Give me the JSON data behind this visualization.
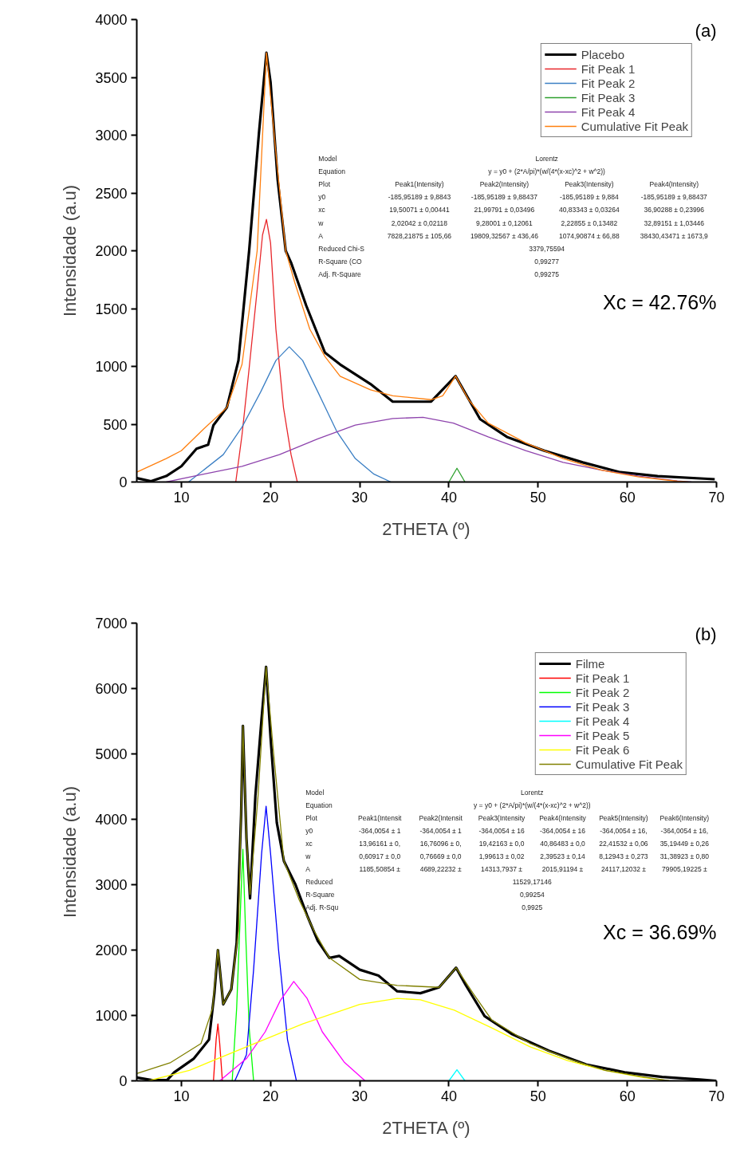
{
  "chart_data": [
    {
      "type": "line",
      "xlabel": "2THETA (º)",
      "ylabel": "Intensidade (a.u)",
      "xlim": [
        5,
        70
      ],
      "ylim": [
        0,
        4000
      ],
      "xticks": [
        10,
        20,
        30,
        40,
        50,
        60,
        70
      ],
      "yticks": [
        0,
        500,
        1000,
        1500,
        2000,
        2500,
        3000,
        3500,
        4000
      ],
      "grid": false,
      "legend": "top right",
      "annotations": [
        "(a)",
        "Xc = 42.76%",
        "Model",
        "Lorentz",
        "Equation",
        "y = y0 + (2*A/pi)*(w/(4*(x-xc)^2 + w^2))",
        "Plot",
        "Peak1(Intensity)",
        "Peak2(Intensity)",
        "Peak3(Intensity)",
        "Peak4(Intensity)",
        "y0",
        "-185,95189 ± 9,8843",
        "-185,95189 ± 9,88437",
        "-185,95189 ± 9,884",
        "-185,95189 ± 9,88437",
        "xc",
        "19,50071 ± 0,00441",
        "21,99791 ± 0,03496",
        "40,83343 ± 0,03264",
        "36,90288 ± 0,23996",
        "w",
        "2,02042 ± 0,02118",
        "9,28001 ± 0,12061",
        "2,22855 ± 0,13482",
        "32,89151 ± 1,03446",
        "A",
        "7828,21875 ± 105,66",
        "19809,32567 ± 436,46",
        "1074,90874 ± 66,88",
        "38430,43471 ± 1673,9",
        "Reduced Chi-S",
        "3379,75594",
        "R-Square (CO",
        "0,99277",
        "Adj. R-Square",
        "0,99275"
      ],
      "series": [
        {
          "name": "Placebo",
          "color": "#000000",
          "x": [
            5,
            6.6,
            8.3,
            10,
            11.7,
            13,
            13.6,
            15.1,
            16.4,
            17.6,
            18.7,
            19.54,
            20,
            20.8,
            21.7,
            22.3,
            24,
            26.1,
            27.8,
            31.2,
            33.7,
            38,
            40.75,
            43.5,
            46.5,
            50.7,
            55,
            59.2,
            63.4,
            69.8
          ],
          "values": [
            34,
            7,
            51,
            136,
            288,
            322,
            492,
            644,
            1051,
            2000,
            3018,
            3713,
            3459,
            2611,
            2000,
            1898,
            1526,
            1119,
            1017,
            848,
            695,
            695,
            916,
            543,
            390,
            271,
            170,
            85,
            51,
            24
          ]
        },
        {
          "name": "Fit Peak 1",
          "color": "#e8272b",
          "x": [
            16.1,
            16.8,
            17.6,
            18.5,
            19.1,
            19.54,
            20,
            20.6,
            21.45,
            22.3,
            23
          ],
          "values": [
            0,
            407,
            983,
            1662,
            2136,
            2272,
            2068,
            1322,
            644,
            237,
            0
          ]
        },
        {
          "name": "Fit Peak 2",
          "color": "#3b7fc4",
          "x": [
            10.8,
            14.7,
            16.8,
            18.9,
            20.6,
            22.1,
            23.6,
            25.3,
            27.4,
            29.5,
            31.6,
            33.5
          ],
          "values": [
            0,
            237,
            475,
            780,
            1051,
            1170,
            1051,
            780,
            441,
            203,
            68,
            0
          ]
        },
        {
          "name": "Fit Peak 3",
          "color": "#2ca02c",
          "x": [
            40,
            40.9,
            41.8
          ],
          "values": [
            0,
            119,
            0
          ]
        },
        {
          "name": "Fit Peak 4",
          "color": "#8e44ad",
          "x": [
            8.3,
            12.5,
            16.8,
            21,
            25.3,
            29.5,
            33.7,
            37.1,
            40.5,
            44.4,
            48.6,
            52.8,
            57.1,
            61.3,
            65.6,
            67.2
          ],
          "values": [
            0,
            68,
            136,
            237,
            373,
            492,
            549,
            560,
            509,
            390,
            271,
            170,
            102,
            51,
            10,
            0
          ]
        },
        {
          "name": "Cumulative Fit Peak",
          "color": "#ff7f0e",
          "x": [
            5,
            8.3,
            10,
            12.5,
            15.1,
            16.8,
            18.5,
            19.54,
            20.6,
            21.7,
            22.7,
            24.4,
            26.1,
            27.8,
            31.2,
            33.7,
            38,
            39.3,
            40.75,
            42.2,
            44.4,
            48.6,
            52.8,
            57.1,
            61.3,
            65.6,
            66.8
          ],
          "values": [
            85,
            203,
            271,
            458,
            644,
            1017,
            2000,
            3713,
            2848,
            2000,
            1729,
            1322,
            1085,
            915,
            797,
            746,
            712,
            746,
            916,
            712,
            509,
            339,
            203,
            102,
            44,
            7,
            0
          ]
        }
      ]
    },
    {
      "type": "line",
      "xlabel": "2THETA (º)",
      "ylabel": "Intensidade (a.u)",
      "xlim": [
        5,
        70
      ],
      "ylim": [
        0,
        7000
      ],
      "xticks": [
        10,
        20,
        30,
        40,
        50,
        60,
        70
      ],
      "yticks": [
        0,
        1000,
        2000,
        3000,
        4000,
        5000,
        6000,
        7000
      ],
      "grid": false,
      "legend": "top right",
      "annotations": [
        "(b)",
        "Xc = 36.69%",
        "Model",
        "Lorentz",
        "Equation",
        "y = y0 + (2*A/pi)*(w/(4*(x-xc)^2 + w^2))",
        "Plot",
        "Peak1(Intensit",
        "Peak2(Intensit",
        "Peak3(Intensity",
        "Peak4(Intensity",
        "Peak5(Intensity)",
        "Peak6(Intensity)",
        "y0",
        "-364,0054 ± 1",
        "-364,0054 ± 1",
        "-364,0054 ± 16",
        "-364,0054 ± 16",
        "-364,0054 ± 16,",
        "-364,0054 ± 16,",
        "xc",
        "13,96161 ± 0,",
        "16,76096 ± 0,",
        "19,42163 ± 0,0",
        "40,86483 ± 0,0",
        "22,41532 ± 0,06",
        "35,19449 ± 0,26",
        "w",
        "0,60917 ± 0,0",
        "0,76669 ± 0,0",
        "1,99613 ± 0,02",
        "2,39523 ± 0,14",
        "8,12943 ± 0,273",
        "31,38923 ± 0,80",
        "A",
        "1185,50854 ±",
        "4689,22232 ±",
        "14313,7937 ±",
        "2015,91194 ±",
        "24117,12032 ±",
        "79905,19225 ±",
        "Reduced",
        "11529,17146",
        "R-Square",
        "0,99254",
        "Adj. R-Squ",
        "0,9925"
      ],
      "series": [
        {
          "name": "Filme",
          "color": "#000000",
          "x": [
            5,
            6.7,
            8.4,
            9.2,
            11.4,
            13.1,
            13.7,
            14.1,
            14.7,
            15.6,
            16.2,
            16.7,
            16.9,
            17.3,
            17.7,
            18.3,
            19,
            19.5,
            20,
            20.7,
            21.5,
            22.8,
            24.1,
            25.3,
            26.6,
            27.7,
            30,
            32.1,
            34.2,
            36.8,
            38.9,
            40.8,
            41.9,
            44,
            47,
            51.2,
            55.4,
            59.7,
            63.9,
            68.1,
            70
          ],
          "values": [
            50,
            10,
            10,
            130,
            340,
            630,
            1340,
            2000,
            1170,
            1400,
            2110,
            4070,
            5430,
            3710,
            2790,
            4360,
            5550,
            6330,
            5250,
            3950,
            3360,
            3000,
            2530,
            2140,
            1880,
            1910,
            1700,
            1610,
            1370,
            1340,
            1430,
            1730,
            1460,
            990,
            720,
            460,
            250,
            130,
            60,
            20,
            0
          ]
        },
        {
          "name": "Fit Peak 1",
          "color": "#ff0000",
          "x": [
            13.6,
            13.9,
            14.1,
            14.3,
            14.6
          ],
          "values": [
            0,
            630,
            870,
            570,
            0
          ]
        },
        {
          "name": "Fit Peak 2",
          "color": "#00ff00",
          "x": [
            15.7,
            16.2,
            16.7,
            16.9,
            17.2,
            17.6,
            18.1
          ],
          "values": [
            0,
            1110,
            2880,
            3540,
            2290,
            810,
            0
          ]
        },
        {
          "name": "Fit Peak 3",
          "color": "#0000ff",
          "x": [
            16,
            17.3,
            18.1,
            19,
            19.5,
            20,
            20.9,
            21.9,
            22.9
          ],
          "values": [
            0,
            400,
            1700,
            3480,
            4200,
            3480,
            2000,
            630,
            0
          ]
        },
        {
          "name": "Fit Peak 4",
          "color": "#00ffff",
          "x": [
            40,
            40.9,
            41.8
          ],
          "values": [
            0,
            170,
            0
          ]
        },
        {
          "name": "Fit Peak 5",
          "color": "#ff00ff",
          "x": [
            14.3,
            17.3,
            19.4,
            21.1,
            22.6,
            24.1,
            25.8,
            28.3,
            30.6
          ],
          "values": [
            0,
            340,
            750,
            1230,
            1520,
            1260,
            750,
            280,
            0
          ]
        },
        {
          "name": "Fit Peak 6",
          "color": "#ffff00",
          "x": [
            6.3,
            10.9,
            17.3,
            23.6,
            30,
            34.2,
            36.8,
            40.6,
            44.8,
            49.1,
            53.3,
            57.5,
            61.8,
            64.7
          ],
          "values": [
            0,
            160,
            520,
            870,
            1170,
            1260,
            1240,
            1080,
            810,
            520,
            310,
            160,
            50,
            0
          ]
        },
        {
          "name": "Cumulative Fit Peak",
          "color": "#808000",
          "x": [
            5,
            8.8,
            12.2,
            13.5,
            14.1,
            14.7,
            15.6,
            16.4,
            16.9,
            17.3,
            17.7,
            18.6,
            19.5,
            20.3,
            21.5,
            23.2,
            24.9,
            26.6,
            30,
            34.2,
            38.9,
            40.8,
            42.7,
            44.8,
            49.1,
            53.3,
            57.5,
            61.8,
            64.7
          ],
          "values": [
            110,
            280,
            570,
            1110,
            2010,
            1170,
            1400,
            2290,
            5430,
            3710,
            2850,
            4360,
            6330,
            5070,
            3360,
            2770,
            2290,
            1880,
            1550,
            1460,
            1430,
            1730,
            1340,
            930,
            570,
            340,
            160,
            60,
            0
          ]
        }
      ]
    }
  ]
}
